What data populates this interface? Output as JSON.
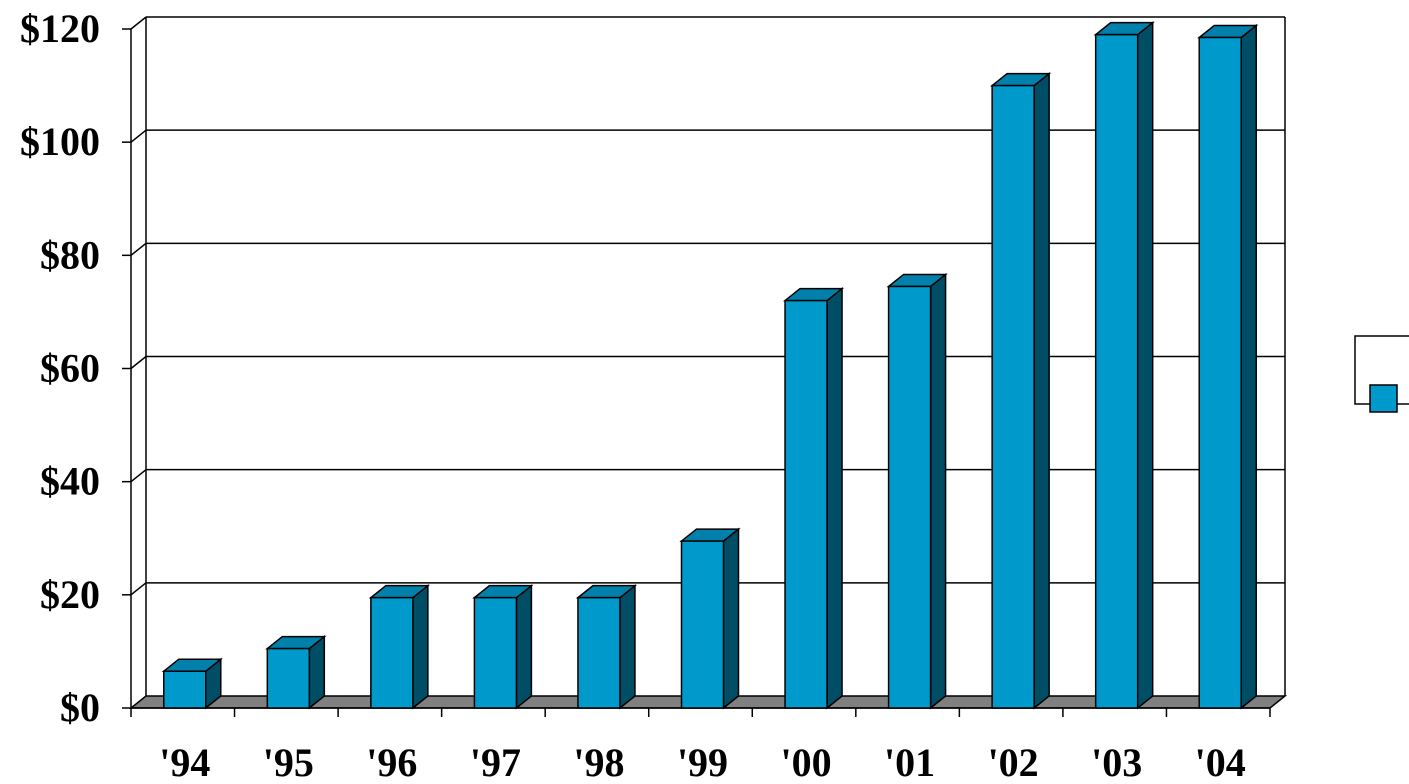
{
  "chart_data": {
    "type": "bar",
    "categories": [
      "'94",
      "'95",
      "'96",
      "'97",
      "'98",
      "'99",
      "'00",
      "'01",
      "'02",
      "'03",
      "'04"
    ],
    "series": [
      {
        "values": [
          6.5,
          10.5,
          19.5,
          19.5,
          19.5,
          29.5,
          72,
          74.5,
          110,
          119,
          118.5
        ]
      }
    ],
    "yticks": [
      "$0",
      "$20",
      "$40",
      "$60",
      "$80",
      "$100",
      "$120"
    ],
    "ylim": [
      0,
      120
    ],
    "grid": true,
    "legend": "right",
    "colors": {
      "bar_front": "#0099CC",
      "bar_side": "#004D66",
      "bar_top": "#0080AA",
      "floor": "#808080",
      "grid": "#000000"
    }
  }
}
